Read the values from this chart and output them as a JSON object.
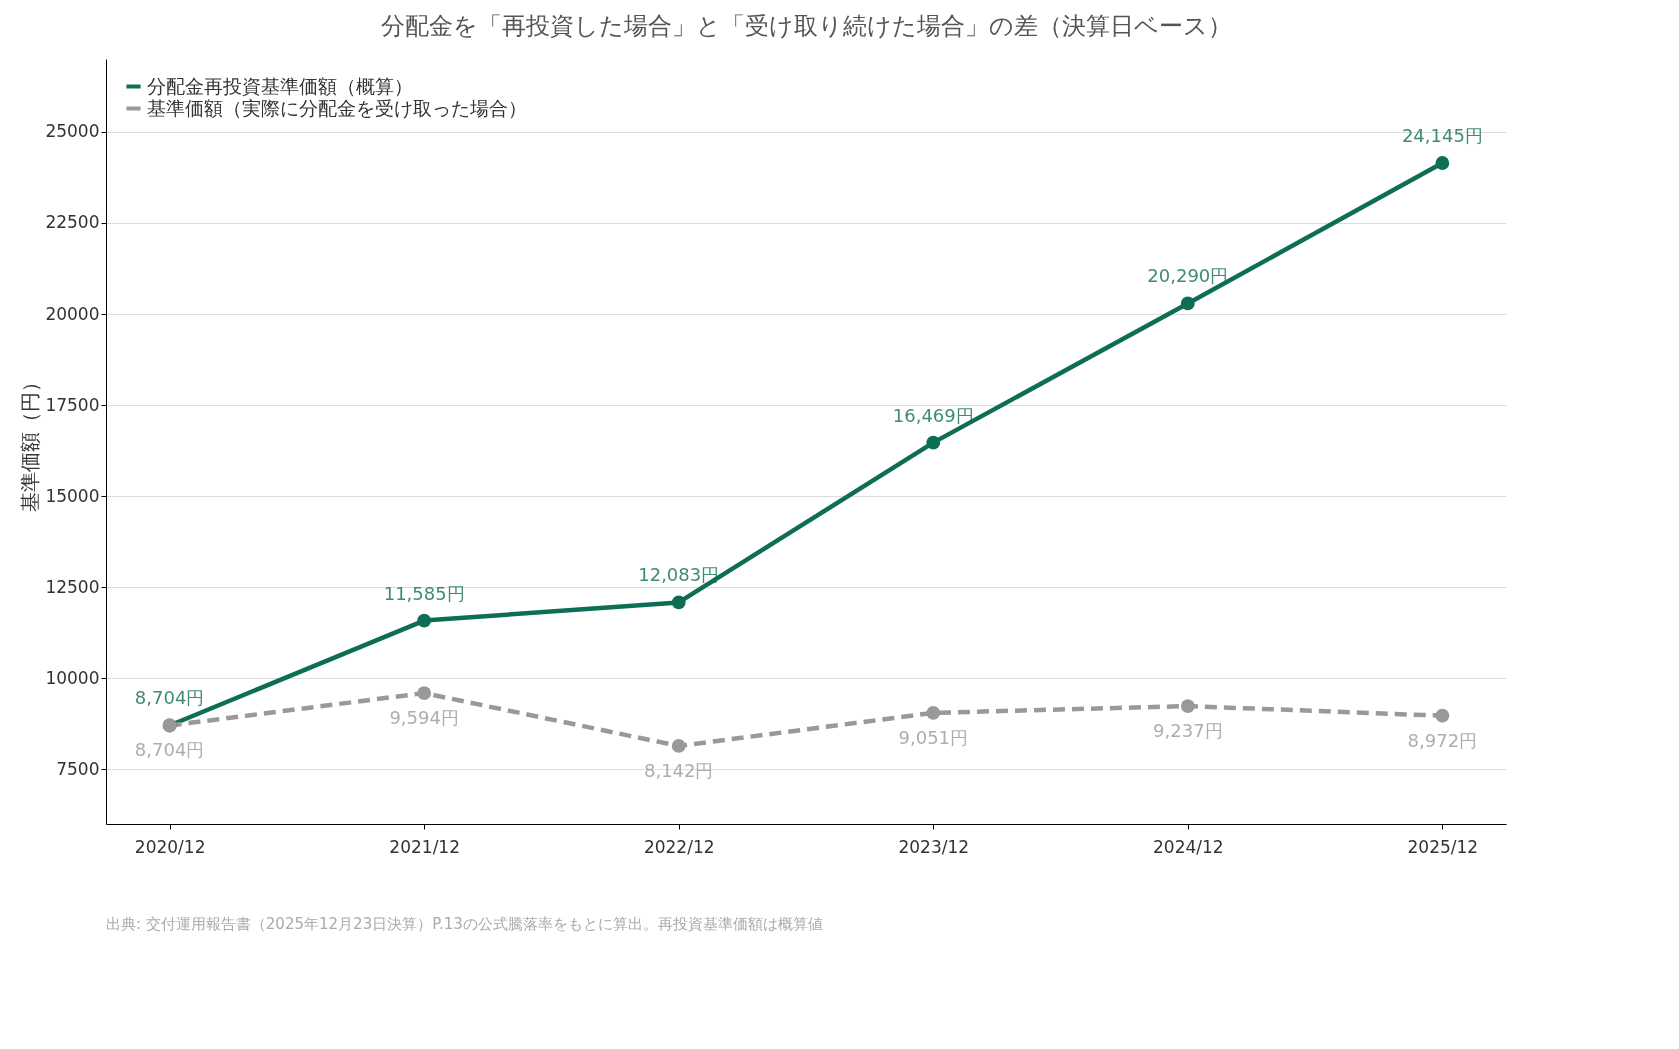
{
  "chart_data": {
    "type": "line",
    "title": "分配金を「再投資した場合」と「受け取り続けた場合」の差（決算日ベース）",
    "ylabel": "基準価額（円）",
    "categories": [
      "2020/12",
      "2021/12",
      "2022/12",
      "2023/12",
      "2024/12",
      "2025/12"
    ],
    "series": [
      {
        "name": "分配金再投資基準価額（概算）",
        "color": "#0e6e55",
        "line_style": "solid",
        "values": [
          8704,
          11585,
          12083,
          16469,
          20290,
          24145
        ],
        "value_labels": [
          "8,704円",
          "11,585円",
          "12,083円",
          "16,469円",
          "20,290円",
          "24,145円"
        ]
      },
      {
        "name": "基準価額（実際に分配金を受け取った場合）",
        "color": "#999999",
        "line_style": "dashed",
        "values": [
          8704,
          9594,
          8142,
          9051,
          9237,
          8972
        ],
        "value_labels": [
          "8,704円",
          "9,594円",
          "8,142円",
          "9,051円",
          "9,237円",
          "8,972円"
        ]
      }
    ],
    "ylim": [
      6000,
      27000
    ],
    "yticks": [
      7500,
      10000,
      12500,
      15000,
      17500,
      20000,
      22500,
      25000
    ],
    "grid": "y",
    "legend": "top left",
    "marker": "circle",
    "annotations": [
      "出典: 交付運用報告書（2025年12月23日決算）P.13の公式騰落率をもとに算出。再投資基準価額は概算値"
    ]
  }
}
